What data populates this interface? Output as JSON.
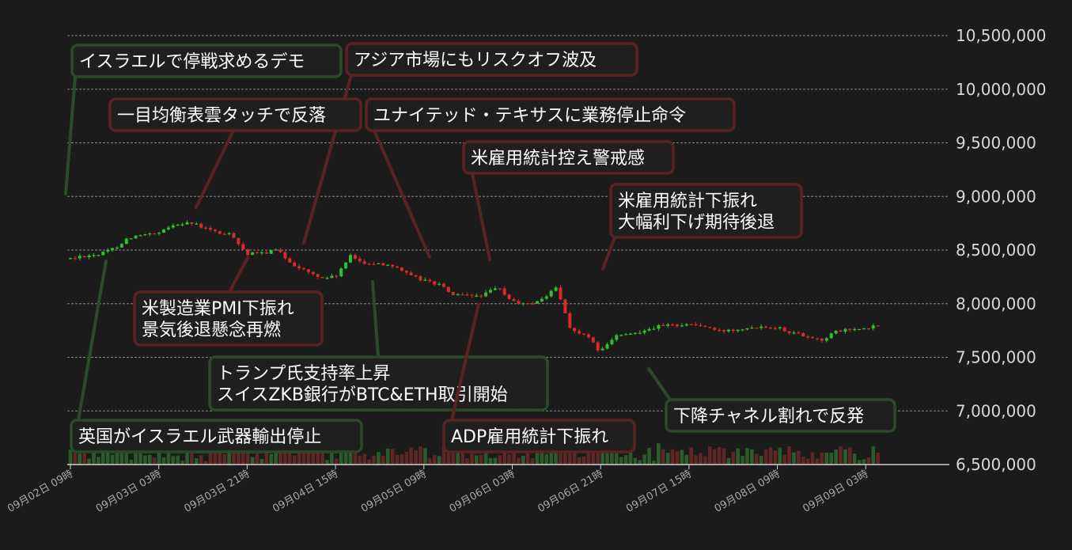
{
  "chart_data": {
    "type": "candlestick",
    "title": "",
    "xlabel": "",
    "ylabel": "",
    "y_range": [
      6500000,
      10500000
    ],
    "grid": "horizontal dashed",
    "y_ticks": [
      "6,500,000",
      "7,000,000",
      "7,500,000",
      "8,000,000",
      "8,500,000",
      "9,000,000",
      "9,500,000",
      "10,000,000",
      "10,500,000"
    ],
    "x_ticks": [
      "09月02日 09時",
      "09月03日 03時",
      "09月03日 21時",
      "09月04日 15時",
      "09月05日 09時",
      "09月06日 03時",
      "09月06日 21時",
      "09月07日 15時",
      "09月08日 09時",
      "09月09日 03時"
    ],
    "hours_between_x_ticks": 18,
    "x_start": "09月02日 09時",
    "x_end": "09月09日 06時",
    "price_path": [
      {
        "time": "09月02日 09時",
        "price": 8420000
      },
      {
        "time": "09月02日 12時",
        "price": 8450000
      },
      {
        "time": "09月02日 15時",
        "price": 8460000
      },
      {
        "time": "09月02日 18時",
        "price": 8520000
      },
      {
        "time": "09月02日 21時",
        "price": 8620000
      },
      {
        "time": "09月03日 00時",
        "price": 8640000
      },
      {
        "time": "09月03日 03時",
        "price": 8650000
      },
      {
        "time": "09月03日 06時",
        "price": 8740000
      },
      {
        "time": "09月03日 09時",
        "price": 8760000
      },
      {
        "time": "09月03日 12時",
        "price": 8710000
      },
      {
        "time": "09月03日 15時",
        "price": 8660000
      },
      {
        "time": "09月03日 18時",
        "price": 8640000
      },
      {
        "time": "09月03日 21時",
        "price": 8460000
      },
      {
        "time": "09月04日 00時",
        "price": 8470000
      },
      {
        "time": "09月04日 03時",
        "price": 8500000
      },
      {
        "time": "09月04日 06時",
        "price": 8380000
      },
      {
        "time": "09月04日 09時",
        "price": 8300000
      },
      {
        "time": "09月04日 12時",
        "price": 8240000
      },
      {
        "time": "09月04日 15時",
        "price": 8250000
      },
      {
        "time": "09月04日 18時",
        "price": 8440000
      },
      {
        "time": "09月04日 21時",
        "price": 8380000
      },
      {
        "time": "09月05日 00時",
        "price": 8370000
      },
      {
        "time": "09月05日 03時",
        "price": 8360000
      },
      {
        "time": "09月05日 06時",
        "price": 8260000
      },
      {
        "time": "09月05日 09時",
        "price": 8220000
      },
      {
        "time": "09月05日 12時",
        "price": 8180000
      },
      {
        "time": "09月05日 15時",
        "price": 8080000
      },
      {
        "time": "09月05日 18時",
        "price": 8070000
      },
      {
        "time": "09月05日 21時",
        "price": 8080000
      },
      {
        "time": "09月06日 00時",
        "price": 8150000
      },
      {
        "time": "09月06日 03時",
        "price": 8020000
      },
      {
        "time": "09月06日 06時",
        "price": 7990000
      },
      {
        "time": "09月06日 09時",
        "price": 8040000
      },
      {
        "time": "09月06日 12時",
        "price": 8150000
      },
      {
        "time": "09月06日 15時",
        "price": 7750000
      },
      {
        "time": "09月06日 18時",
        "price": 7700000
      },
      {
        "time": "09月06日 21時",
        "price": 7550000
      },
      {
        "time": "09月07日 00時",
        "price": 7700000
      },
      {
        "time": "09月07日 03時",
        "price": 7710000
      },
      {
        "time": "09月07日 06時",
        "price": 7760000
      },
      {
        "time": "09月07日 09時",
        "price": 7790000
      },
      {
        "time": "09月07日 12時",
        "price": 7800000
      },
      {
        "time": "09月07日 15時",
        "price": 7810000
      },
      {
        "time": "09月07日 18時",
        "price": 7790000
      },
      {
        "time": "09月07日 21時",
        "price": 7740000
      },
      {
        "time": "09月08日 00時",
        "price": 7760000
      },
      {
        "time": "09月08日 03時",
        "price": 7780000
      },
      {
        "time": "09月08日 06時",
        "price": 7790000
      },
      {
        "time": "09月08日 09時",
        "price": 7780000
      },
      {
        "time": "09月08日 12時",
        "price": 7730000
      },
      {
        "time": "09月08日 15時",
        "price": 7700000
      },
      {
        "time": "09月08日 18時",
        "price": 7660000
      },
      {
        "time": "09月08日 21時",
        "price": 7740000
      },
      {
        "time": "09月09日 00時",
        "price": 7760000
      },
      {
        "time": "09月09日 03時",
        "price": 7760000
      },
      {
        "time": "09月09日 06時",
        "price": 7810000
      }
    ],
    "colors": {
      "up": "#2fbf2f",
      "down": "#d92b2b",
      "grid": "#8a8a8a",
      "axis": "#cfcfcf",
      "note_green": "#2c4a2a",
      "note_red": "#5a2323"
    },
    "annotations": [
      {
        "lines": [
          "イスラエルで停戦求めるデモ"
        ],
        "kind": "green",
        "time": "09月02日 09時"
      },
      {
        "lines": [
          "アジア市場にもリスクオフ波及"
        ],
        "kind": "red",
        "time": "09月04日 03時"
      },
      {
        "lines": [
          "一目均衡表雲タッチで反落"
        ],
        "kind": "red",
        "time": "09月03日 09時"
      },
      {
        "lines": [
          "ユナイテッド・テキサスに業務停止命令"
        ],
        "kind": "red",
        "time": "09月05日 03時"
      },
      {
        "lines": [
          "米雇用統計控え警戒感"
        ],
        "kind": "red",
        "time": "09月05日 18時"
      },
      {
        "lines": [
          "米雇用統計下振れ",
          "大幅利下げ期待後退"
        ],
        "kind": "red",
        "time": "09月06日 12時"
      },
      {
        "lines": [
          "米製造業PMI下振れ",
          "景気後退懸念再燃"
        ],
        "kind": "red",
        "time": "09月03日 18時"
      },
      {
        "lines": [
          "トランプ氏支持率上昇",
          "スイスZKB銀行がBTC&ETH取引開始"
        ],
        "kind": "green",
        "time": "09月04日 12時"
      },
      {
        "lines": [
          "英国がイスラエル武器輸出停止"
        ],
        "kind": "green",
        "time": "09月02日 15時"
      },
      {
        "lines": [
          "ADP雇用統計下振れ"
        ],
        "kind": "red",
        "time": "09月05日 21時"
      },
      {
        "lines": [
          "下降チャネル割れで反発"
        ],
        "kind": "green",
        "time": "09月06日 21時"
      }
    ]
  }
}
